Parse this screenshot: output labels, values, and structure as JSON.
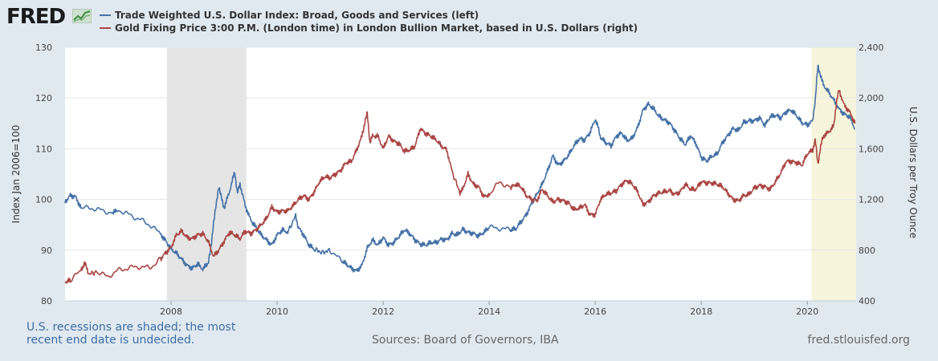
{
  "brand": {
    "name": "FRED"
  },
  "colors": {
    "left_series": "#4572a7",
    "right_series": "#aa4643",
    "recession": "#e5e5e5",
    "undecided_recession": "#f6f5dc",
    "background": "#e1e9f0"
  },
  "footnote": "U.S. recessions are shaded; the most recent end date is undecided.",
  "sources": "Sources: Board of Governors, IBA",
  "site": "fred.stlouisfed.org",
  "chart_data": {
    "type": "line",
    "legend_placement": "top-left",
    "grid": true,
    "x_range": [
      2006.0,
      2020.92
    ],
    "xticks": [
      "2008",
      "2010",
      "2012",
      "2014",
      "2016",
      "2018",
      "2020"
    ],
    "y_left": {
      "label": "Index Jan 2006=100",
      "range": [
        80,
        130
      ],
      "ticks": [
        "80",
        "90",
        "100",
        "110",
        "120",
        "130"
      ]
    },
    "y_right": {
      "label": "U.S. Dollars per Troy Ounce",
      "range": [
        400,
        2400
      ],
      "ticks": [
        "400",
        "800",
        "1,200",
        "1,600",
        "2,000",
        "2,400"
      ]
    },
    "recessions": [
      {
        "start": 2007.92,
        "end": 2009.42
      },
      {
        "start": 2020.08,
        "end": 2020.92,
        "undecided": true
      }
    ],
    "series": [
      {
        "name": "Trade Weighted U.S. Dollar Index: Broad, Goods and Services (left)",
        "axis": "left",
        "points": [
          [
            2006.0,
            99.5
          ],
          [
            2006.1,
            100.8
          ],
          [
            2006.2,
            100.5
          ],
          [
            2006.3,
            98.3
          ],
          [
            2006.5,
            98.3
          ],
          [
            2006.7,
            97.8
          ],
          [
            2006.9,
            97.3
          ],
          [
            2007.0,
            98.0
          ],
          [
            2007.2,
            97.0
          ],
          [
            2007.4,
            96.1
          ],
          [
            2007.6,
            95.0
          ],
          [
            2007.8,
            93.2
          ],
          [
            2007.9,
            91.8
          ],
          [
            2008.0,
            90.2
          ],
          [
            2008.1,
            89.4
          ],
          [
            2008.2,
            88.2
          ],
          [
            2008.3,
            87.0
          ],
          [
            2008.4,
            86.4
          ],
          [
            2008.5,
            87.3
          ],
          [
            2008.6,
            86.2
          ],
          [
            2008.7,
            87.6
          ],
          [
            2008.75,
            90.2
          ],
          [
            2008.8,
            95.4
          ],
          [
            2008.85,
            98.8
          ],
          [
            2008.9,
            102.7
          ],
          [
            2008.95,
            100.2
          ],
          [
            2009.0,
            98.3
          ],
          [
            2009.1,
            101.5
          ],
          [
            2009.2,
            105.5
          ],
          [
            2009.25,
            101.2
          ],
          [
            2009.3,
            103.0
          ],
          [
            2009.4,
            98.7
          ],
          [
            2009.5,
            96.0
          ],
          [
            2009.6,
            94.5
          ],
          [
            2009.7,
            93.0
          ],
          [
            2009.8,
            92.0
          ],
          [
            2009.9,
            91.0
          ],
          [
            2010.0,
            93.0
          ],
          [
            2010.1,
            94.0
          ],
          [
            2010.2,
            93.5
          ],
          [
            2010.35,
            96.8
          ],
          [
            2010.4,
            94.5
          ],
          [
            2010.5,
            93.0
          ],
          [
            2010.6,
            91.0
          ],
          [
            2010.7,
            90.2
          ],
          [
            2010.85,
            89.5
          ],
          [
            2011.0,
            90.0
          ],
          [
            2011.2,
            88.0
          ],
          [
            2011.3,
            87.3
          ],
          [
            2011.4,
            86.4
          ],
          [
            2011.5,
            85.9
          ],
          [
            2011.6,
            87.0
          ],
          [
            2011.7,
            90.4
          ],
          [
            2011.8,
            92.0
          ],
          [
            2011.9,
            91.0
          ],
          [
            2012.0,
            92.5
          ],
          [
            2012.1,
            91.0
          ],
          [
            2012.2,
            91.5
          ],
          [
            2012.3,
            92.7
          ],
          [
            2012.4,
            94.0
          ],
          [
            2012.5,
            93.3
          ],
          [
            2012.6,
            92.0
          ],
          [
            2012.7,
            91.2
          ],
          [
            2012.8,
            91.0
          ],
          [
            2012.9,
            91.5
          ],
          [
            2013.0,
            91.5
          ],
          [
            2013.1,
            92.2
          ],
          [
            2013.2,
            92.0
          ],
          [
            2013.3,
            93.3
          ],
          [
            2013.4,
            93.0
          ],
          [
            2013.5,
            94.1
          ],
          [
            2013.6,
            93.5
          ],
          [
            2013.7,
            93.3
          ],
          [
            2013.8,
            92.8
          ],
          [
            2013.9,
            93.5
          ],
          [
            2014.0,
            94.5
          ],
          [
            2014.2,
            94.3
          ],
          [
            2014.4,
            94.0
          ],
          [
            2014.5,
            94.2
          ],
          [
            2014.6,
            95.6
          ],
          [
            2014.7,
            97.0
          ],
          [
            2014.8,
            99.2
          ],
          [
            2014.9,
            101.0
          ],
          [
            2015.0,
            103.0
          ],
          [
            2015.1,
            105.6
          ],
          [
            2015.2,
            108.6
          ],
          [
            2015.3,
            106.8
          ],
          [
            2015.4,
            107.5
          ],
          [
            2015.5,
            108.8
          ],
          [
            2015.6,
            110.6
          ],
          [
            2015.7,
            112.0
          ],
          [
            2015.8,
            111.7
          ],
          [
            2015.9,
            113.2
          ],
          [
            2016.0,
            115.8
          ],
          [
            2016.05,
            114.4
          ],
          [
            2016.1,
            112.2
          ],
          [
            2016.2,
            111.2
          ],
          [
            2016.3,
            110.6
          ],
          [
            2016.4,
            112.5
          ],
          [
            2016.5,
            113.1
          ],
          [
            2016.6,
            111.6
          ],
          [
            2016.7,
            112.1
          ],
          [
            2016.8,
            114.2
          ],
          [
            2016.9,
            117.6
          ],
          [
            2017.0,
            118.8
          ],
          [
            2017.1,
            117.9
          ],
          [
            2017.2,
            116.4
          ],
          [
            2017.3,
            115.7
          ],
          [
            2017.4,
            115.1
          ],
          [
            2017.5,
            113.6
          ],
          [
            2017.6,
            112.0
          ],
          [
            2017.7,
            110.8
          ],
          [
            2017.8,
            112.6
          ],
          [
            2017.9,
            111.0
          ],
          [
            2018.0,
            108.3
          ],
          [
            2018.1,
            107.6
          ],
          [
            2018.2,
            108.5
          ],
          [
            2018.3,
            109.0
          ],
          [
            2018.4,
            111.2
          ],
          [
            2018.5,
            112.6
          ],
          [
            2018.6,
            114.0
          ],
          [
            2018.7,
            113.6
          ],
          [
            2018.8,
            115.2
          ],
          [
            2018.9,
            115.5
          ],
          [
            2019.0,
            115.5
          ],
          [
            2019.1,
            116.1
          ],
          [
            2019.2,
            114.6
          ],
          [
            2019.3,
            116.3
          ],
          [
            2019.4,
            116.6
          ],
          [
            2019.5,
            116.1
          ],
          [
            2019.6,
            117.3
          ],
          [
            2019.7,
            117.6
          ],
          [
            2019.8,
            116.5
          ],
          [
            2019.9,
            115.1
          ],
          [
            2020.0,
            114.7
          ],
          [
            2020.1,
            115.5
          ],
          [
            2020.15,
            119.7
          ],
          [
            2020.2,
            126.3
          ],
          [
            2020.25,
            124.5
          ],
          [
            2020.3,
            122.6
          ],
          [
            2020.4,
            121.2
          ],
          [
            2020.5,
            119.6
          ],
          [
            2020.6,
            117.8
          ],
          [
            2020.7,
            116.8
          ],
          [
            2020.8,
            116.3
          ],
          [
            2020.9,
            113.9
          ]
        ]
      },
      {
        "name": "Gold Fixing Price 3:00 P.M. (London time) in London Bullion Market, based in U.S. Dollars (right)",
        "axis": "right",
        "points": [
          [
            2006.0,
            550
          ],
          [
            2006.1,
            560
          ],
          [
            2006.3,
            640
          ],
          [
            2006.37,
            700
          ],
          [
            2006.45,
            610
          ],
          [
            2006.6,
            630
          ],
          [
            2006.8,
            590
          ],
          [
            2007.0,
            640
          ],
          [
            2007.2,
            660
          ],
          [
            2007.4,
            670
          ],
          [
            2007.6,
            660
          ],
          [
            2007.8,
            730
          ],
          [
            2007.9,
            780
          ],
          [
            2008.0,
            820
          ],
          [
            2008.1,
            920
          ],
          [
            2008.2,
            950
          ],
          [
            2008.3,
            900
          ],
          [
            2008.4,
            890
          ],
          [
            2008.5,
            920
          ],
          [
            2008.6,
            930
          ],
          [
            2008.7,
            870
          ],
          [
            2008.8,
            750
          ],
          [
            2008.9,
            800
          ],
          [
            2009.0,
            870
          ],
          [
            2009.1,
            940
          ],
          [
            2009.2,
            920
          ],
          [
            2009.3,
            890
          ],
          [
            2009.4,
            950
          ],
          [
            2009.5,
            930
          ],
          [
            2009.6,
            960
          ],
          [
            2009.7,
            1000
          ],
          [
            2009.8,
            1050
          ],
          [
            2009.9,
            1140
          ],
          [
            2010.0,
            1100
          ],
          [
            2010.1,
            1110
          ],
          [
            2010.2,
            1110
          ],
          [
            2010.3,
            1150
          ],
          [
            2010.4,
            1200
          ],
          [
            2010.5,
            1230
          ],
          [
            2010.6,
            1200
          ],
          [
            2010.7,
            1260
          ],
          [
            2010.8,
            1340
          ],
          [
            2010.9,
            1380
          ],
          [
            2011.0,
            1370
          ],
          [
            2011.1,
            1400
          ],
          [
            2011.2,
            1430
          ],
          [
            2011.3,
            1490
          ],
          [
            2011.4,
            1500
          ],
          [
            2011.5,
            1590
          ],
          [
            2011.6,
            1700
          ],
          [
            2011.65,
            1800
          ],
          [
            2011.7,
            1880
          ],
          [
            2011.75,
            1650
          ],
          [
            2011.8,
            1700
          ],
          [
            2011.9,
            1700
          ],
          [
            2012.0,
            1600
          ],
          [
            2012.1,
            1700
          ],
          [
            2012.2,
            1660
          ],
          [
            2012.3,
            1640
          ],
          [
            2012.4,
            1580
          ],
          [
            2012.5,
            1590
          ],
          [
            2012.6,
            1620
          ],
          [
            2012.7,
            1760
          ],
          [
            2012.8,
            1720
          ],
          [
            2012.9,
            1700
          ],
          [
            2013.0,
            1670
          ],
          [
            2013.1,
            1620
          ],
          [
            2013.2,
            1590
          ],
          [
            2013.3,
            1420
          ],
          [
            2013.45,
            1250
          ],
          [
            2013.5,
            1280
          ],
          [
            2013.6,
            1400
          ],
          [
            2013.7,
            1320
          ],
          [
            2013.8,
            1300
          ],
          [
            2013.9,
            1220
          ],
          [
            2014.0,
            1240
          ],
          [
            2014.2,
            1340
          ],
          [
            2014.4,
            1290
          ],
          [
            2014.5,
            1320
          ],
          [
            2014.6,
            1300
          ],
          [
            2014.7,
            1230
          ],
          [
            2014.8,
            1200
          ],
          [
            2014.9,
            1190
          ],
          [
            2015.0,
            1280
          ],
          [
            2015.1,
            1230
          ],
          [
            2015.2,
            1180
          ],
          [
            2015.3,
            1200
          ],
          [
            2015.4,
            1190
          ],
          [
            2015.5,
            1170
          ],
          [
            2015.6,
            1120
          ],
          [
            2015.7,
            1130
          ],
          [
            2015.8,
            1160
          ],
          [
            2015.9,
            1080
          ],
          [
            2016.0,
            1080
          ],
          [
            2016.1,
            1200
          ],
          [
            2016.2,
            1240
          ],
          [
            2016.3,
            1250
          ],
          [
            2016.4,
            1270
          ],
          [
            2016.5,
            1320
          ],
          [
            2016.6,
            1350
          ],
          [
            2016.7,
            1320
          ],
          [
            2016.8,
            1260
          ],
          [
            2016.9,
            1160
          ],
          [
            2017.0,
            1180
          ],
          [
            2017.1,
            1230
          ],
          [
            2017.2,
            1250
          ],
          [
            2017.3,
            1260
          ],
          [
            2017.4,
            1270
          ],
          [
            2017.5,
            1240
          ],
          [
            2017.6,
            1260
          ],
          [
            2017.7,
            1320
          ],
          [
            2017.8,
            1280
          ],
          [
            2017.9,
            1280
          ],
          [
            2018.0,
            1340
          ],
          [
            2018.1,
            1330
          ],
          [
            2018.2,
            1330
          ],
          [
            2018.3,
            1320
          ],
          [
            2018.4,
            1300
          ],
          [
            2018.5,
            1250
          ],
          [
            2018.6,
            1200
          ],
          [
            2018.7,
            1190
          ],
          [
            2018.8,
            1230
          ],
          [
            2018.9,
            1240
          ],
          [
            2019.0,
            1290
          ],
          [
            2019.1,
            1310
          ],
          [
            2019.2,
            1300
          ],
          [
            2019.3,
            1280
          ],
          [
            2019.4,
            1340
          ],
          [
            2019.5,
            1410
          ],
          [
            2019.6,
            1500
          ],
          [
            2019.7,
            1500
          ],
          [
            2019.8,
            1490
          ],
          [
            2019.9,
            1470
          ],
          [
            2020.0,
            1560
          ],
          [
            2020.1,
            1590
          ],
          [
            2020.15,
            1670
          ],
          [
            2020.2,
            1480
          ],
          [
            2020.25,
            1610
          ],
          [
            2020.3,
            1700
          ],
          [
            2020.4,
            1730
          ],
          [
            2020.5,
            1780
          ],
          [
            2020.55,
            1970
          ],
          [
            2020.6,
            2060
          ],
          [
            2020.7,
            1940
          ],
          [
            2020.8,
            1890
          ],
          [
            2020.9,
            1800
          ]
        ]
      }
    ]
  }
}
